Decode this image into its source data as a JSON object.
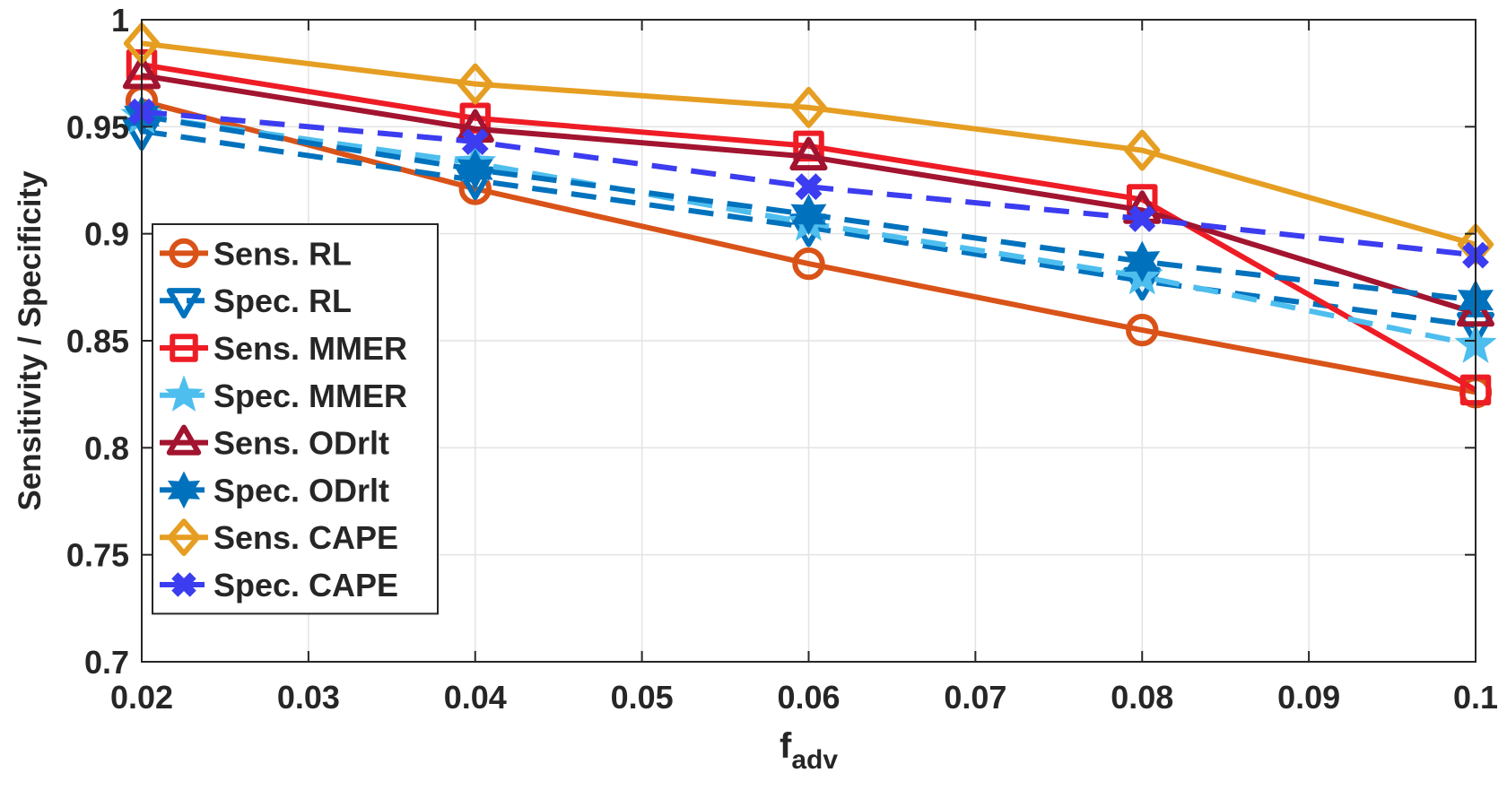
{
  "chart_data": {
    "type": "line",
    "xlabel": "f",
    "xlabel_sub": "adv",
    "ylabel": "Sensitivity / Specificity",
    "x": [
      0.02,
      0.04,
      0.06,
      0.08,
      0.1
    ],
    "xlim": [
      0.02,
      0.1
    ],
    "ylim": [
      0.7,
      1
    ],
    "xticks": [
      "0.02",
      "0.03",
      "0.04",
      "0.05",
      "0.06",
      "0.07",
      "0.08",
      "0.09",
      "0.1"
    ],
    "yticks": [
      "0.7",
      "0.75",
      "0.8",
      "0.85",
      "0.9",
      "0.95",
      "1"
    ],
    "grid": true,
    "legend_position": "left-middle",
    "series": [
      {
        "name": "Sens. RL",
        "values": [
          0.962,
          0.921,
          0.886,
          0.855,
          0.826
        ],
        "color": "#D95319",
        "dash": "solid",
        "marker": "circle"
      },
      {
        "name": "Spec. RL",
        "values": [
          0.948,
          0.925,
          0.903,
          0.878,
          0.857
        ],
        "color": "#0072BD",
        "dash": "dashed",
        "marker": "triangle-down"
      },
      {
        "name": "Sens. MMER",
        "values": [
          0.979,
          0.954,
          0.941,
          0.916,
          0.827
        ],
        "color": "#EE1C25",
        "dash": "solid",
        "marker": "square"
      },
      {
        "name": "Spec. MMER",
        "values": [
          0.955,
          0.933,
          0.905,
          0.88,
          0.848
        ],
        "color": "#4DBEEE",
        "dash": "dashed",
        "marker": "star"
      },
      {
        "name": "Sens. ODrlt",
        "values": [
          0.974,
          0.949,
          0.936,
          0.911,
          0.863
        ],
        "color": "#A2142F",
        "dash": "solid",
        "marker": "triangle-up"
      },
      {
        "name": "Spec. ODrlt",
        "values": [
          0.955,
          0.93,
          0.909,
          0.887,
          0.869
        ],
        "color": "#0072BD",
        "dash": "dashed",
        "marker": "hexagram"
      },
      {
        "name": "Sens. CAPE",
        "values": [
          0.989,
          0.97,
          0.959,
          0.939,
          0.895
        ],
        "color": "#E69E22",
        "dash": "solid",
        "marker": "diamond"
      },
      {
        "name": "Spec. CAPE",
        "values": [
          0.957,
          0.943,
          0.922,
          0.907,
          0.89
        ],
        "color": "#3C3CF0",
        "dash": "dashed",
        "marker": "x"
      }
    ]
  }
}
